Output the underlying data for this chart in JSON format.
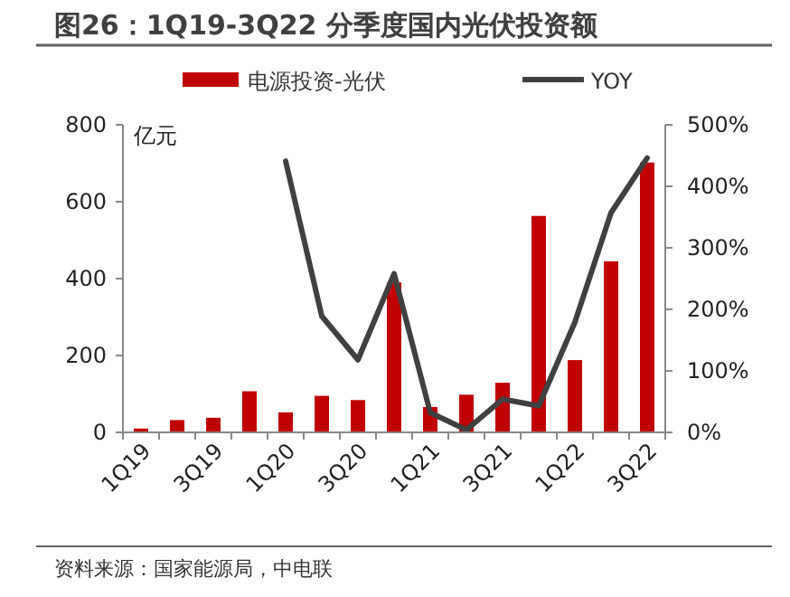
{
  "chart_data": {
    "type": "bar",
    "title": "图26：1Q19-3Q22 分季度国内光伏投资额",
    "ylabel": "亿元",
    "categories": [
      "1Q19",
      null,
      "3Q19",
      null,
      "1Q20",
      null,
      "3Q20",
      null,
      "1Q21",
      null,
      "3Q21",
      null,
      "1Q22",
      null,
      "3Q22"
    ],
    "series": [
      {
        "name": "电源投资-光伏",
        "color": "#c00000",
        "values": [
          10,
          32,
          38,
          107,
          52,
          95,
          84,
          390,
          66,
          98,
          129,
          563,
          188,
          445,
          702
        ]
      },
      {
        "name": "YOY",
        "type": "line",
        "axis": "y2",
        "color": "#404040",
        "values": [
          null,
          null,
          null,
          null,
          441,
          189,
          118,
          258,
          32,
          4,
          54,
          43,
          179,
          357,
          446
        ]
      }
    ],
    "ylim": [
      0,
      800
    ],
    "yticks": [
      0,
      200,
      400,
      600,
      800
    ],
    "y2lim": [
      0,
      500
    ],
    "y2ticks": [
      {
        "value": 0,
        "label": "0%"
      },
      {
        "value": 100,
        "label": "100%"
      },
      {
        "value": 200,
        "label": "200%"
      },
      {
        "value": 300,
        "label": "300%"
      },
      {
        "value": 400,
        "label": "400%"
      },
      {
        "value": 500,
        "label": "500%"
      }
    ],
    "legend": "top",
    "grid": false,
    "marker": "none",
    "annotations": [
      "资料来源：国家能源局，中电联"
    ]
  }
}
